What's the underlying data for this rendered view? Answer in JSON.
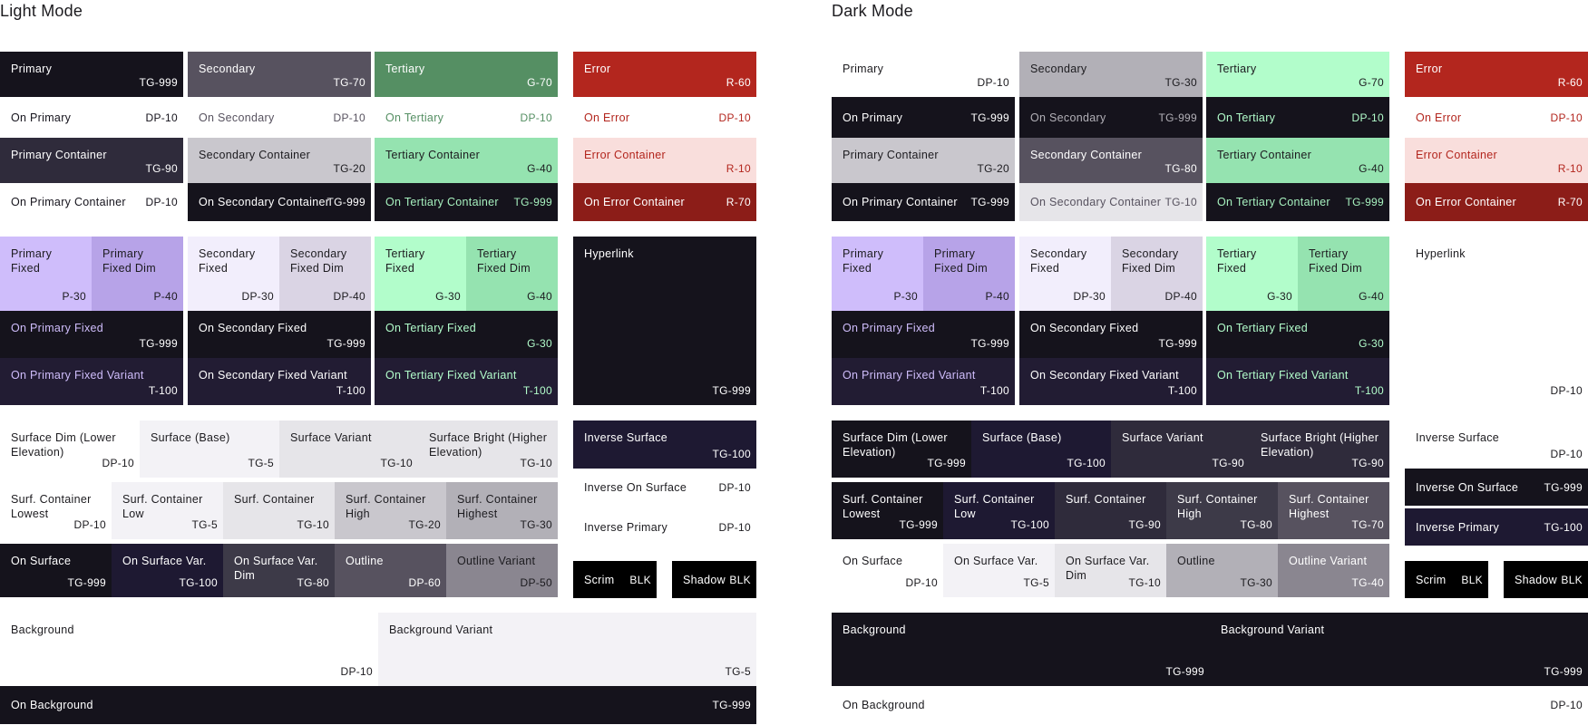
{
  "headings": {
    "light": "Light Mode",
    "dark": "Dark Mode"
  },
  "light": [
    {
      "id": "primary",
      "name": "Primary",
      "code": "TG-999",
      "bg": "#15131c",
      "fg": "#ffffff"
    },
    {
      "id": "on-primary",
      "name": "On Primary",
      "code": "DP-10",
      "bg": "#ffffff",
      "fg": "#15131c"
    },
    {
      "id": "primary-container",
      "name": "Primary Container",
      "code": "TG-90",
      "bg": "#2f2b3b",
      "fg": "#ffffff"
    },
    {
      "id": "on-primary-container",
      "name": "On Primary Container",
      "code": "DP-10",
      "bg": "#ffffff",
      "fg": "#15131c"
    },
    {
      "id": "secondary",
      "name": "Secondary",
      "code": "TG-70",
      "bg": "#57525f",
      "fg": "#ffffff"
    },
    {
      "id": "on-secondary",
      "name": "On Secondary",
      "code": "DP-10",
      "bg": "#ffffff",
      "fg": "#57525f"
    },
    {
      "id": "secondary-container",
      "name": "Secondary Container",
      "code": "TG-20",
      "bg": "#c9c7cd",
      "fg": "#1c1b1f"
    },
    {
      "id": "on-secondary-container",
      "name": "On Secondary Container",
      "code": "TG-999",
      "bg": "#15131c",
      "fg": "#ffffff"
    },
    {
      "id": "tertiary",
      "name": "Tertiary",
      "code": "G-70",
      "bg": "#558f63",
      "fg": "#ffffff"
    },
    {
      "id": "on-tertiary",
      "name": "On Tertiary",
      "code": "DP-10",
      "bg": "#ffffff",
      "fg": "#558f63"
    },
    {
      "id": "tertiary-container",
      "name": "Tertiary Container",
      "code": "G-40",
      "bg": "#95e3b0",
      "fg": "#1c1b1f"
    },
    {
      "id": "on-tertiary-container",
      "name": "On Tertiary Container",
      "code": "TG-999",
      "bg": "#15131c",
      "fg": "#a6f0be"
    },
    {
      "id": "error",
      "name": "Error",
      "code": "R-60",
      "bg": "#b3261e",
      "fg": "#ffffff"
    },
    {
      "id": "on-error",
      "name": "On Error",
      "code": "DP-10",
      "bg": "#ffffff",
      "fg": "#b3261e"
    },
    {
      "id": "error-container",
      "name": "Error Container",
      "code": "R-10",
      "bg": "#f9dedc",
      "fg": "#b3261e"
    },
    {
      "id": "on-error-container",
      "name": "On Error Container",
      "code": "R-70",
      "bg": "#8c1d18",
      "fg": "#ffffff"
    },
    {
      "id": "primary-fixed",
      "name": "Primary Fixed",
      "code": "P-30",
      "bg": "#cfbdfb",
      "fg": "#1c1b1f"
    },
    {
      "id": "primary-fixed-dim",
      "name": "Primary Fixed Dim",
      "code": "P-40",
      "bg": "#b7a3e8",
      "fg": "#1c1b1f"
    },
    {
      "id": "secondary-fixed",
      "name": "Secondary Fixed",
      "code": "DP-30",
      "bg": "#f2eefc",
      "fg": "#1c1b1f"
    },
    {
      "id": "secondary-fixed-dim",
      "name": "Secondary Fixed Dim",
      "code": "DP-40",
      "bg": "#dad4e4",
      "fg": "#1c1b1f"
    },
    {
      "id": "tertiary-fixed",
      "name": "Tertiary Fixed",
      "code": "G-30",
      "bg": "#b2fdcb",
      "fg": "#1c1b1f"
    },
    {
      "id": "tertiary-fixed-dim",
      "name": "Tertiary Fixed Dim",
      "code": "G-40",
      "bg": "#95e3b0",
      "fg": "#1c1b1f"
    },
    {
      "id": "on-primary-fixed",
      "name": "On Primary Fixed",
      "code": "TG-999",
      "bg": "#15131c",
      "fg": "#cfbdfb",
      "codefg": "#ffffff"
    },
    {
      "id": "on-primary-fixed-variant",
      "name": "On Primary Fixed Variant",
      "code": "T-100",
      "bg": "#221c33",
      "fg": "#cfbdfb",
      "codefg": "#ffffff"
    },
    {
      "id": "on-secondary-fixed",
      "name": "On Secondary Fixed",
      "code": "TG-999",
      "bg": "#15131c",
      "fg": "#ffffff"
    },
    {
      "id": "on-secondary-fixed-variant",
      "name": "On Secondary Fixed Variant",
      "code": "T-100",
      "bg": "#221c33",
      "fg": "#ffffff"
    },
    {
      "id": "on-tertiary-fixed",
      "name": "On Tertiary Fixed",
      "code": "G-30",
      "bg": "#15131c",
      "fg": "#b2fdcb"
    },
    {
      "id": "on-tertiary-fixed-variant",
      "name": "On Tertiary Fixed Variant",
      "code": "T-100",
      "bg": "#221c33",
      "fg": "#b2fdcb"
    },
    {
      "id": "hyperlink",
      "name": "Hyperlink",
      "code": "TG-999",
      "bg": "#15131c",
      "fg": "#ffffff"
    },
    {
      "id": "surface-dim",
      "name": "Surface Dim (Lower Elevation)",
      "code": "DP-10",
      "bg": "#ffffff",
      "fg": "#1c1b1f"
    },
    {
      "id": "surface-base",
      "name": "Surface (Base)",
      "code": "TG-5",
      "bg": "#f3f2f6",
      "fg": "#1c1b1f"
    },
    {
      "id": "surface-variant",
      "name": "Surface Variant",
      "code": "TG-10",
      "bg": "#e6e5e9",
      "fg": "#1c1b1f"
    },
    {
      "id": "surface-bright",
      "name": "Surface Bright (Higher Elevation)",
      "code": "TG-10",
      "bg": "#e6e5e9",
      "fg": "#1c1b1f"
    },
    {
      "id": "surf-container-lowest",
      "name": "Surf. Container Lowest",
      "code": "DP-10",
      "bg": "#ffffff",
      "fg": "#1c1b1f"
    },
    {
      "id": "surf-container-low",
      "name": "Surf. Container Low",
      "code": "TG-5",
      "bg": "#f3f2f6",
      "fg": "#1c1b1f"
    },
    {
      "id": "surf-container",
      "name": "Surf. Container",
      "code": "TG-10",
      "bg": "#e6e5e9",
      "fg": "#1c1b1f"
    },
    {
      "id": "surf-container-high",
      "name": "Surf. Container High",
      "code": "TG-20",
      "bg": "#c9c7cd",
      "fg": "#1c1b1f"
    },
    {
      "id": "surf-container-highest",
      "name": "Surf. Container Highest",
      "code": "TG-30",
      "bg": "#b2b0b7",
      "fg": "#1c1b1f"
    },
    {
      "id": "on-surface",
      "name": "On Surface",
      "code": "TG-999",
      "bg": "#15131c",
      "fg": "#ffffff"
    },
    {
      "id": "on-surface-var",
      "name": "On Surface Var.",
      "code": "TG-100",
      "bg": "#1e1932",
      "fg": "#ffffff"
    },
    {
      "id": "on-surface-var-dim",
      "name": "On Surface Var. Dim",
      "code": "TG-80",
      "bg": "#3d3a48",
      "fg": "#ffffff"
    },
    {
      "id": "outline",
      "name": "Outline",
      "code": "DP-60",
      "bg": "#57525f",
      "fg": "#ffffff"
    },
    {
      "id": "outline-variant",
      "name": "Outline Variant",
      "code": "DP-50",
      "bg": "#8a8690",
      "fg": "#1c1b1f"
    },
    {
      "id": "inverse-surface",
      "name": "Inverse Surface",
      "code": "TG-100",
      "bg": "#1e1932",
      "fg": "#ffffff"
    },
    {
      "id": "inverse-on-surface",
      "name": "Inverse On Surface",
      "code": "DP-10",
      "bg": "#ffffff",
      "fg": "#1c1b1f"
    },
    {
      "id": "inverse-primary",
      "name": "Inverse Primary",
      "code": "DP-10",
      "bg": "#ffffff",
      "fg": "#1c1b1f"
    },
    {
      "id": "scrim",
      "name": "Scrim",
      "code": "BLK",
      "bg": "#000000",
      "fg": "#ffffff"
    },
    {
      "id": "shadow",
      "name": "Shadow",
      "code": "BLK",
      "bg": "#000000",
      "fg": "#ffffff"
    },
    {
      "id": "background",
      "name": "Background",
      "code": "DP-10",
      "bg": "#ffffff",
      "fg": "#1c1b1f"
    },
    {
      "id": "background-variant",
      "name": "Background Variant",
      "code": "TG-5",
      "bg": "#f3f2f6",
      "fg": "#1c1b1f"
    },
    {
      "id": "on-background",
      "name": "On Background",
      "code": "TG-999",
      "bg": "#15131c",
      "fg": "#ffffff"
    }
  ],
  "dark": [
    {
      "id": "primary",
      "name": "Primary",
      "code": "DP-10",
      "bg": "#ffffff",
      "fg": "#1c1b1f"
    },
    {
      "id": "on-primary",
      "name": "On Primary",
      "code": "TG-999",
      "bg": "#15131c",
      "fg": "#ffffff"
    },
    {
      "id": "primary-container",
      "name": "Primary Container",
      "code": "TG-20",
      "bg": "#c9c7cd",
      "fg": "#1c1b1f"
    },
    {
      "id": "on-primary-container",
      "name": "On Primary Container",
      "code": "TG-999",
      "bg": "#15131c",
      "fg": "#ffffff"
    },
    {
      "id": "secondary",
      "name": "Secondary",
      "code": "TG-30",
      "bg": "#b2b0b7",
      "fg": "#1c1b1f"
    },
    {
      "id": "on-secondary",
      "name": "On Secondary",
      "code": "TG-999",
      "bg": "#15131c",
      "fg": "#b2b0b7"
    },
    {
      "id": "secondary-container",
      "name": "Secondary Container",
      "code": "TG-80",
      "bg": "#57525f",
      "fg": "#ffffff"
    },
    {
      "id": "on-secondary-container",
      "name": "On Secondary Container",
      "code": "TG-10",
      "bg": "#e6e5e9",
      "fg": "#57525f"
    },
    {
      "id": "tertiary",
      "name": "Tertiary",
      "code": "G-70",
      "bg": "#b2fdcb",
      "fg": "#1c1b1f"
    },
    {
      "id": "on-tertiary",
      "name": "On Tertiary",
      "code": "DP-10",
      "bg": "#15131c",
      "fg": "#b2fdcb"
    },
    {
      "id": "tertiary-container",
      "name": "Tertiary Container",
      "code": "G-40",
      "bg": "#95e3b0",
      "fg": "#1c1b1f"
    },
    {
      "id": "on-tertiary-container",
      "name": "On Tertiary Container",
      "code": "TG-999",
      "bg": "#15131c",
      "fg": "#a6f0be"
    },
    {
      "id": "error",
      "name": "Error",
      "code": "R-60",
      "bg": "#b3261e",
      "fg": "#ffffff"
    },
    {
      "id": "on-error",
      "name": "On Error",
      "code": "DP-10",
      "bg": "#ffffff",
      "fg": "#b3261e"
    },
    {
      "id": "error-container",
      "name": "Error Container",
      "code": "R-10",
      "bg": "#f9dedc",
      "fg": "#b3261e"
    },
    {
      "id": "on-error-container",
      "name": "On Error Container",
      "code": "R-70",
      "bg": "#8c1d18",
      "fg": "#ffffff"
    },
    {
      "id": "primary-fixed",
      "name": "Primary Fixed",
      "code": "P-30",
      "bg": "#cfbdfb",
      "fg": "#1c1b1f"
    },
    {
      "id": "primary-fixed-dim",
      "name": "Primary Fixed Dim",
      "code": "P-40",
      "bg": "#b7a3e8",
      "fg": "#1c1b1f"
    },
    {
      "id": "secondary-fixed",
      "name": "Secondary Fixed",
      "code": "DP-30",
      "bg": "#f2eefc",
      "fg": "#1c1b1f"
    },
    {
      "id": "secondary-fixed-dim",
      "name": "Secondary Fixed Dim",
      "code": "DP-40",
      "bg": "#dad4e4",
      "fg": "#1c1b1f"
    },
    {
      "id": "tertiary-fixed",
      "name": "Tertiary Fixed",
      "code": "G-30",
      "bg": "#b2fdcb",
      "fg": "#1c1b1f"
    },
    {
      "id": "tertiary-fixed-dim",
      "name": "Tertiary Fixed Dim",
      "code": "G-40",
      "bg": "#95e3b0",
      "fg": "#1c1b1f"
    },
    {
      "id": "on-primary-fixed",
      "name": "On Primary Fixed",
      "code": "TG-999",
      "bg": "#15131c",
      "fg": "#cfbdfb",
      "codefg": "#ffffff"
    },
    {
      "id": "on-primary-fixed-variant",
      "name": "On Primary Fixed Variant",
      "code": "T-100",
      "bg": "#221c33",
      "fg": "#cfbdfb",
      "codefg": "#ffffff"
    },
    {
      "id": "on-secondary-fixed",
      "name": "On Secondary Fixed",
      "code": "TG-999",
      "bg": "#15131c",
      "fg": "#ffffff"
    },
    {
      "id": "on-secondary-fixed-variant",
      "name": "On Secondary Fixed Variant",
      "code": "T-100",
      "bg": "#221c33",
      "fg": "#ffffff"
    },
    {
      "id": "on-tertiary-fixed",
      "name": "On Tertiary Fixed",
      "code": "G-30",
      "bg": "#15131c",
      "fg": "#b2fdcb"
    },
    {
      "id": "on-tertiary-fixed-variant",
      "name": "On Tertiary Fixed Variant",
      "code": "T-100",
      "bg": "#221c33",
      "fg": "#b2fdcb"
    },
    {
      "id": "hyperlink",
      "name": "Hyperlink",
      "code": "DP-10",
      "bg": "#ffffff",
      "fg": "#1c1b1f"
    },
    {
      "id": "surface-dim",
      "name": "Surface Dim (Lower Elevation)",
      "code": "TG-999",
      "bg": "#15131c",
      "fg": "#ffffff"
    },
    {
      "id": "surface-base",
      "name": "Surface (Base)",
      "code": "TG-100",
      "bg": "#1e1932",
      "fg": "#ffffff"
    },
    {
      "id": "surface-variant",
      "name": "Surface Variant",
      "code": "TG-90",
      "bg": "#2f2b3b",
      "fg": "#ffffff"
    },
    {
      "id": "surface-bright",
      "name": "Surface Bright (Higher Elevation)",
      "code": "TG-90",
      "bg": "#2f2b3b",
      "fg": "#ffffff"
    },
    {
      "id": "surf-container-lowest",
      "name": "Surf. Container Lowest",
      "code": "TG-999",
      "bg": "#15131c",
      "fg": "#ffffff"
    },
    {
      "id": "surf-container-low",
      "name": "Surf. Container Low",
      "code": "TG-100",
      "bg": "#1e1932",
      "fg": "#ffffff"
    },
    {
      "id": "surf-container",
      "name": "Surf. Container",
      "code": "TG-90",
      "bg": "#2f2b3b",
      "fg": "#ffffff"
    },
    {
      "id": "surf-container-high",
      "name": "Surf. Container High",
      "code": "TG-80",
      "bg": "#3d3a48",
      "fg": "#ffffff"
    },
    {
      "id": "surf-container-highest",
      "name": "Surf. Container Highest",
      "code": "TG-70",
      "bg": "#57525f",
      "fg": "#ffffff"
    },
    {
      "id": "on-surface",
      "name": "On Surface",
      "code": "DP-10",
      "bg": "#ffffff",
      "fg": "#1c1b1f"
    },
    {
      "id": "on-surface-var",
      "name": "On Surface Var.",
      "code": "TG-5",
      "bg": "#f3f2f6",
      "fg": "#1c1b1f"
    },
    {
      "id": "on-surface-var-dim",
      "name": "On Surface Var. Dim",
      "code": "TG-10",
      "bg": "#e6e5e9",
      "fg": "#1c1b1f"
    },
    {
      "id": "outline",
      "name": "Outline",
      "code": "TG-30",
      "bg": "#b2b0b7",
      "fg": "#1c1b1f"
    },
    {
      "id": "outline-variant",
      "name": "Outline Variant",
      "code": "TG-40",
      "bg": "#8a8690",
      "fg": "#ffffff"
    },
    {
      "id": "inverse-surface",
      "name": "Inverse Surface",
      "code": "DP-10",
      "bg": "#ffffff",
      "fg": "#1c1b1f"
    },
    {
      "id": "inverse-on-surface",
      "name": "Inverse On Surface",
      "code": "TG-999",
      "bg": "#15131c",
      "fg": "#ffffff"
    },
    {
      "id": "inverse-primary",
      "name": "Inverse Primary",
      "code": "TG-100",
      "bg": "#1e1932",
      "fg": "#ffffff"
    },
    {
      "id": "scrim",
      "name": "Scrim",
      "code": "BLK",
      "bg": "#000000",
      "fg": "#ffffff"
    },
    {
      "id": "shadow",
      "name": "Shadow",
      "code": "BLK",
      "bg": "#000000",
      "fg": "#ffffff"
    },
    {
      "id": "background",
      "name": "Background",
      "code": "TG-999",
      "bg": "#15131c",
      "fg": "#ffffff"
    },
    {
      "id": "background-variant",
      "name": "Background Variant",
      "code": "TG-999",
      "bg": "#15131c",
      "fg": "#ffffff"
    },
    {
      "id": "on-background",
      "name": "On Background",
      "code": "DP-10",
      "bg": "#ffffff",
      "fg": "#1c1b1f"
    }
  ]
}
